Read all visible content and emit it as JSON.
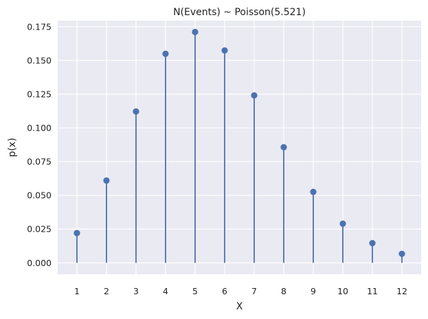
{
  "chart_data": {
    "type": "stem",
    "title": "N(Events) ~ Poisson(5.521)",
    "xlabel": "X",
    "ylabel": "p(x)",
    "x": [
      1,
      2,
      3,
      4,
      5,
      6,
      7,
      8,
      9,
      10,
      11,
      12
    ],
    "values": [
      0.0221,
      0.061,
      0.1122,
      0.1549,
      0.1711,
      0.1574,
      0.1241,
      0.0857,
      0.0526,
      0.029,
      0.0146,
      0.0067
    ],
    "xlim": [
      0.35,
      12.65
    ],
    "ylim": [
      -0.0085,
      0.1795
    ],
    "yticks": [
      "0.000",
      "0.025",
      "0.050",
      "0.075",
      "0.100",
      "0.125",
      "0.150",
      "0.175"
    ],
    "xticks": [
      "1",
      "2",
      "3",
      "4",
      "5",
      "6",
      "7",
      "8",
      "9",
      "10",
      "11",
      "12"
    ],
    "grid": true,
    "legend": "none",
    "colors": {
      "stem": "#4c72b0",
      "background": "#eaeaf2",
      "grid": "#ffffff"
    }
  }
}
